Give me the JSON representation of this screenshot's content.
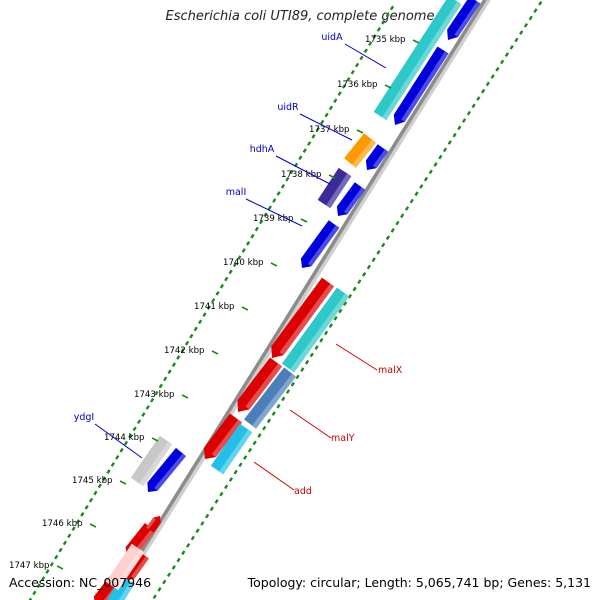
{
  "title": "Escherichia coli UTI89, complete genome",
  "footer": {
    "accession": "Accession: NC_007946",
    "info": "Topology: circular; Length: 5,065,741 bp; Genes: 5,131"
  },
  "colors": {
    "backbone": "#8c8c8c",
    "tick": "#1a8a1a",
    "forward_label": "#0000cc",
    "reverse_label": "#cc0000",
    "ruler_text": "#000000"
  },
  "ruler": [
    {
      "label": "1735 kbp"
    },
    {
      "label": "1736 kbp"
    },
    {
      "label": "1737 kbp"
    },
    {
      "label": "1738 kbp"
    },
    {
      "label": "1739 kbp"
    },
    {
      "label": "1740 kbp"
    },
    {
      "label": "1741 kbp"
    },
    {
      "label": "1742 kbp"
    },
    {
      "label": "1743 kbp"
    },
    {
      "label": "1744 kbp"
    },
    {
      "label": "1745 kbp"
    },
    {
      "label": "1746 kbp"
    },
    {
      "label": "1747 kbp"
    }
  ],
  "forward_genes": [
    {
      "label": "uidA",
      "color": "#2ec8c8"
    },
    {
      "label": "uidR",
      "color": "#ff9900"
    },
    {
      "label": "hdhA",
      "color": "#3a2a9a"
    },
    {
      "label": "malI",
      "color": "#0000dd"
    },
    {
      "label": "ydgI",
      "color": "#c8c8c8"
    }
  ],
  "reverse_genes": [
    {
      "label": "malX",
      "color": "#dd0000"
    },
    {
      "label": "malY",
      "color": "#dd0000"
    },
    {
      "label": "add",
      "color": "#dd0000"
    }
  ]
}
